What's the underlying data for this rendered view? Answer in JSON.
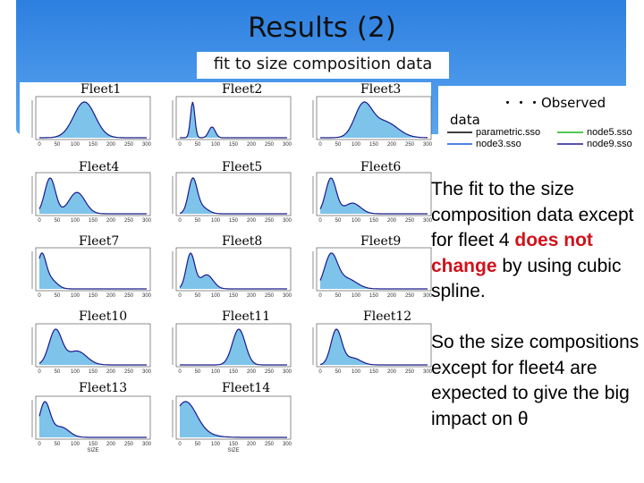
{
  "header": {
    "title": "Results (2)",
    "subtitle": "fit to size composition data"
  },
  "plots": {
    "fleets": [
      "Fleet1",
      "Fleet2",
      "Fleet3",
      "Fleet4",
      "Fleet5",
      "Fleet6",
      "Fleet7",
      "Fleet8",
      "Fleet9",
      "Fleet10",
      "Fleet11",
      "Fleet12",
      "Fleet13",
      "Fleet14"
    ],
    "x_ticks": [
      "0",
      "50",
      "100",
      "150",
      "200",
      "250",
      "300"
    ],
    "x_label": "SIZE"
  },
  "legend": {
    "observed": "・・・Observed",
    "observed_cont": "data",
    "entries": [
      "parametric.sso",
      "node5.sso",
      "node3.sso",
      "node9.sso"
    ]
  },
  "body": {
    "paragraph1": [
      "The fit to the size composition data except for fleet 4 ",
      "does not change",
      " by using cubic spline."
    ],
    "paragraph2": "So the size compositions except for fleet4 are expected to give the big impact on θ"
  }
}
